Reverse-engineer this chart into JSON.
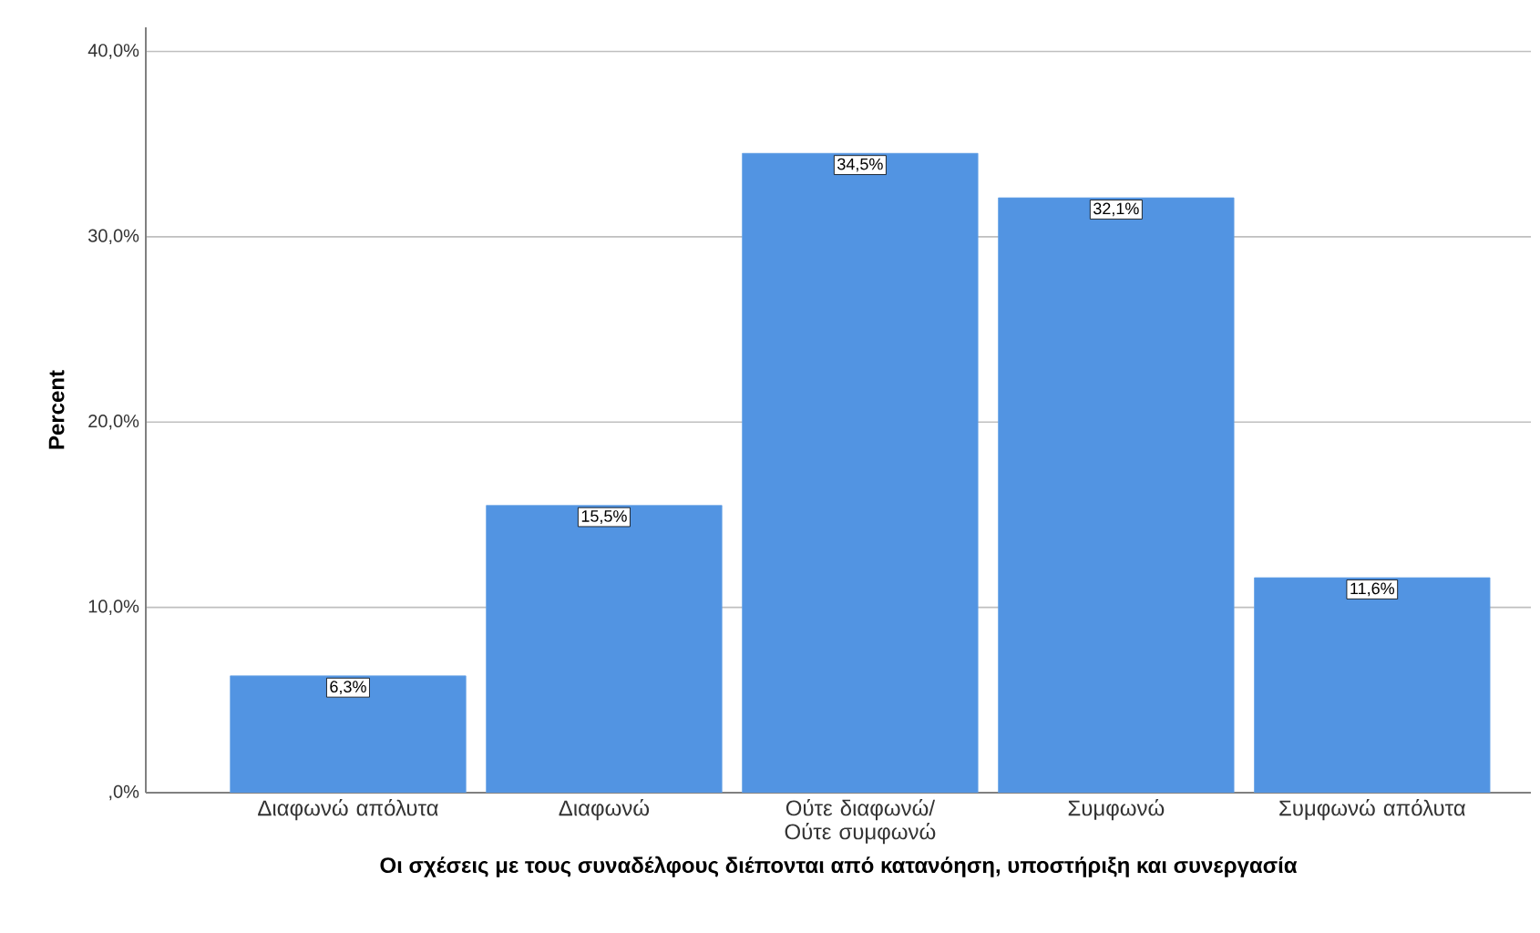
{
  "chart_data": {
    "type": "bar",
    "xlabel": "Οι σχέσεις με τους συναδέλφους διέπονται από κατανόηση, υποστήριξη και συνεργασία",
    "ylabel": "Percent",
    "categories": [
      "Διαφωνώ απόλυτα",
      "Διαφωνώ",
      "Ούτε διαφωνώ/ Ούτε συμφωνώ",
      "Συμφωνώ",
      "Συμφωνώ απόλυτα"
    ],
    "values": [
      6.3,
      15.5,
      34.5,
      32.1,
      11.6
    ],
    "value_labels": [
      "6,3%",
      "15,5%",
      "34,5%",
      "32,1%",
      "11,6%"
    ],
    "color": "#5294e2",
    "ylim": [
      0,
      41.3
    ],
    "yticks": [
      {
        "value": 0,
        "label": ",0%"
      },
      {
        "value": 10,
        "label": "10,0%"
      },
      {
        "value": 20,
        "label": "20,0%"
      },
      {
        "value": 30,
        "label": "30,0%"
      },
      {
        "value": 40,
        "label": "40,0%"
      }
    ],
    "grid": "y"
  }
}
